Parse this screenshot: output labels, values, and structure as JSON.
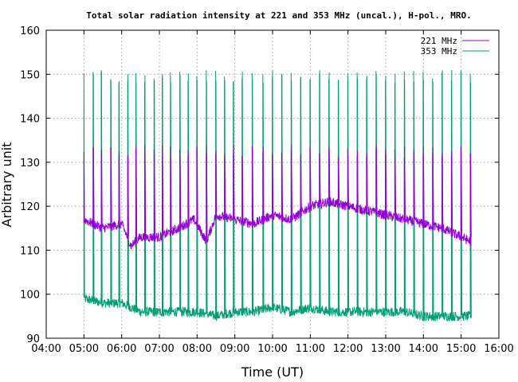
{
  "chart_data": {
    "type": "line",
    "title": "Total solar radiation intensity at 221 and 353 MHz (uncal.), H-pol., MRO.",
    "xlabel": "Time (UT)",
    "ylabel": "Arbitrary unit",
    "xlim": [
      "04:00",
      "16:00"
    ],
    "ylim": [
      90,
      160
    ],
    "grid": true,
    "legend_position": "top-right",
    "x_ticks": [
      "04:00",
      "05:00",
      "06:00",
      "07:00",
      "08:00",
      "09:00",
      "10:00",
      "11:00",
      "12:00",
      "13:00",
      "14:00",
      "15:00",
      "16:00"
    ],
    "y_ticks": [
      "90",
      "100",
      "110",
      "120",
      "130",
      "140",
      "150",
      "160"
    ],
    "series": [
      {
        "name": "221 MHz",
        "color": "#9400d3",
        "x": [
          "05:00",
          "05:30",
          "06:00",
          "06:15",
          "06:30",
          "07:00",
          "07:30",
          "07:55",
          "08:15",
          "08:30",
          "09:00",
          "09:30",
          "10:00",
          "10:30",
          "11:00",
          "11:30",
          "12:00",
          "12:30",
          "13:00",
          "13:30",
          "14:00",
          "14:30",
          "15:00",
          "15:15"
        ],
        "baseline": [
          117,
          115,
          116,
          111,
          113,
          113,
          115,
          117,
          112,
          118,
          117,
          116,
          118,
          117,
          120,
          121,
          120,
          119,
          118,
          117,
          116,
          115,
          113,
          112
        ],
        "spike_peak": 134,
        "spike_minutes": [
          0,
          15,
          28,
          43,
          56,
          70,
          83,
          97,
          112,
          125,
          138,
          153,
          166,
          180,
          195,
          210,
          224,
          238,
          252,
          268,
          285,
          300,
          315,
          330,
          345,
          360,
          375,
          390,
          405,
          420,
          435,
          450,
          465,
          480,
          495,
          510,
          525,
          540,
          555,
          570,
          585,
          600,
          615
        ]
      },
      {
        "name": "353 MHz",
        "color": "#009e73",
        "x": [
          "05:00",
          "05:30",
          "06:00",
          "06:30",
          "07:00",
          "07:30",
          "08:00",
          "08:30",
          "09:00",
          "09:30",
          "10:00",
          "10:30",
          "11:00",
          "11:30",
          "12:00",
          "12:30",
          "13:00",
          "13:30",
          "14:00",
          "14:30",
          "15:00",
          "15:15"
        ],
        "baseline": [
          99,
          98,
          98,
          96,
          96,
          96,
          96,
          95,
          96,
          96,
          97,
          96,
          97,
          96,
          96,
          96,
          96,
          96,
          95,
          95,
          95,
          95
        ],
        "spike_peak": 151,
        "spike_minutes": [
          0,
          15,
          28,
          43,
          56,
          70,
          83,
          97,
          112,
          125,
          138,
          153,
          166,
          180,
          195,
          210,
          224,
          238,
          252,
          268,
          285,
          300,
          315,
          330,
          345,
          360,
          375,
          390,
          405,
          420,
          435,
          450,
          465,
          480,
          495,
          510,
          525,
          540,
          555,
          570,
          585,
          600,
          615
        ]
      }
    ]
  }
}
